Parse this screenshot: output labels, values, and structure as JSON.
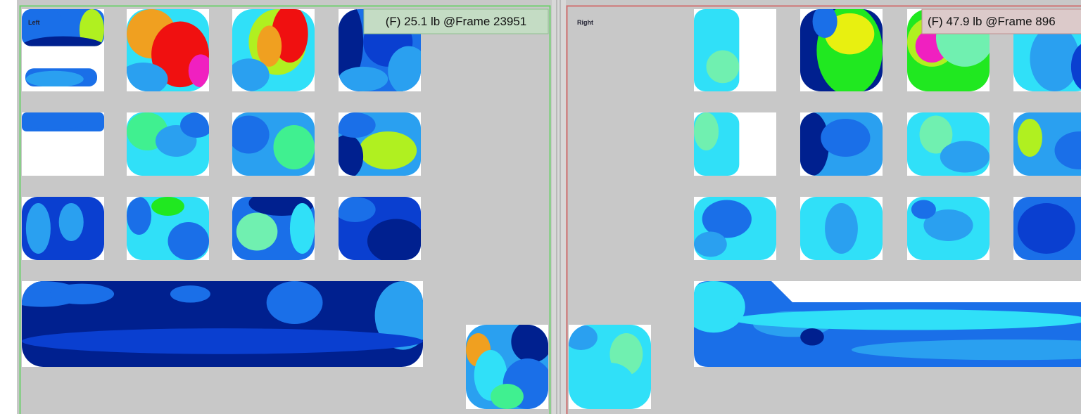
{
  "panels": [
    {
      "label": "Left",
      "readout": "(F) 25.1 lb @Frame 23951"
    },
    {
      "label": "Right",
      "readout": "(F) 47.9 lb @Frame 896"
    }
  ]
}
